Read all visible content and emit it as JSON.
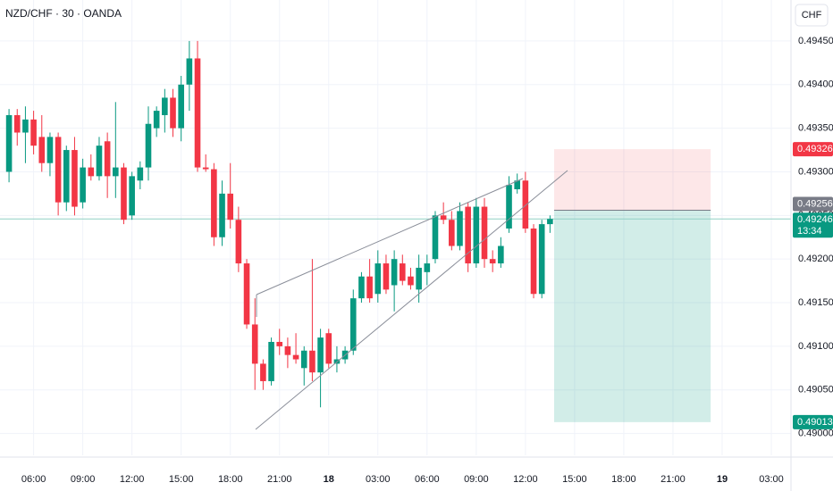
{
  "chart_data": {
    "type": "candlestick",
    "title": "NZD/CHF · 30 · OANDA",
    "currency": "CHF",
    "up_color": "#089981",
    "down_color": "#f23645",
    "grid": true,
    "open": [
      0.493,
      0.49365,
      0.49345,
      0.4936,
      0.4934,
      0.4931,
      0.4934,
      0.49265,
      0.49325,
      0.49265,
      0.49305,
      0.49295,
      0.49335,
      0.49295,
      0.49305,
      0.4925,
      0.4929,
      0.49305,
      0.4935,
      0.49365,
      0.49385,
      0.4935,
      0.494,
      0.4943,
      0.49305,
      0.49303,
      0.49225,
      0.49275,
      0.49245,
      0.49195,
      0.49125,
      0.4908,
      0.4906,
      0.49105,
      0.491,
      0.4909,
      0.49075,
      0.49095,
      0.4907,
      0.49115,
      0.4908,
      0.49085,
      0.49095,
      0.49155,
      0.4918,
      0.4916,
      0.49195,
      0.4917,
      0.49195,
      0.4918,
      0.49165,
      0.49185,
      0.492,
      0.4925,
      0.49245,
      0.49215,
      0.4926,
      0.49195,
      0.4926,
      0.492,
      0.49195,
      0.49235,
      0.4928,
      0.4929,
      0.49235,
      0.4916,
      0.4924
    ],
    "high": [
      0.49372,
      0.49372,
      0.49375,
      0.4937,
      0.49365,
      0.49345,
      0.49345,
      0.4933,
      0.4934,
      0.49315,
      0.4932,
      0.4934,
      0.49345,
      0.4938,
      0.4931,
      0.493,
      0.49312,
      0.49375,
      0.49375,
      0.49395,
      0.49395,
      0.4941,
      0.4945,
      0.4945,
      0.4932,
      0.4931,
      0.4929,
      0.4931,
      0.4926,
      0.492,
      0.49155,
      0.49085,
      0.4911,
      0.4912,
      0.4911,
      0.49115,
      0.491,
      0.492,
      0.4912,
      0.4912,
      0.491,
      0.491,
      0.49165,
      0.49185,
      0.492,
      0.4921,
      0.49205,
      0.4921,
      0.49205,
      0.4919,
      0.49205,
      0.49205,
      0.49255,
      0.49265,
      0.49255,
      0.49265,
      0.49265,
      0.4927,
      0.4927,
      0.4921,
      0.49225,
      0.49295,
      0.49298,
      0.493,
      0.4924,
      0.49245,
      0.4925
    ],
    "low": [
      0.49288,
      0.4933,
      0.4931,
      0.4932,
      0.493,
      0.49295,
      0.4925,
      0.49255,
      0.4925,
      0.49258,
      0.4929,
      0.4929,
      0.4927,
      0.4927,
      0.4924,
      0.49245,
      0.4928,
      0.4929,
      0.4934,
      0.49345,
      0.4934,
      0.49335,
      0.4937,
      0.493,
      0.493,
      0.49215,
      0.49215,
      0.49235,
      0.49185,
      0.4912,
      0.4905,
      0.4905,
      0.49055,
      0.4909,
      0.49075,
      0.4908,
      0.49055,
      0.4906,
      0.4903,
      0.49075,
      0.4907,
      0.4908,
      0.4909,
      0.4915,
      0.4915,
      0.4915,
      0.4916,
      0.4914,
      0.4917,
      0.49165,
      0.4915,
      0.4917,
      0.49195,
      0.4924,
      0.4921,
      0.4921,
      0.49185,
      0.4919,
      0.4919,
      0.49185,
      0.4919,
      0.4923,
      0.49275,
      0.4923,
      0.49155,
      0.49155,
      0.4923
    ],
    "close": [
      0.49365,
      0.49345,
      0.4936,
      0.4933,
      0.4931,
      0.4934,
      0.49265,
      0.49325,
      0.4926,
      0.49305,
      0.49295,
      0.4933,
      0.49295,
      0.49305,
      0.49245,
      0.49295,
      0.49305,
      0.49355,
      0.4937,
      0.49385,
      0.4935,
      0.494,
      0.4943,
      0.49305,
      0.49303,
      0.49225,
      0.49275,
      0.49245,
      0.49195,
      0.49125,
      0.4908,
      0.4906,
      0.49105,
      0.491,
      0.4909,
      0.49085,
      0.49095,
      0.4907,
      0.4911,
      0.4908,
      0.49085,
      0.49095,
      0.49155,
      0.4918,
      0.49155,
      0.49195,
      0.49165,
      0.492,
      0.49175,
      0.4917,
      0.4919,
      0.49195,
      0.4925,
      0.49245,
      0.49215,
      0.49255,
      0.49195,
      0.4926,
      0.492,
      0.49195,
      0.49215,
      0.49285,
      0.4929,
      0.49235,
      0.4916,
      0.4924,
      0.49246
    ],
    "xlim": [
      -1.1,
      95.4
    ],
    "xticks": [
      {
        "value": 3,
        "label": "06:00"
      },
      {
        "value": 9,
        "label": "09:00"
      },
      {
        "value": 15,
        "label": "12:00"
      },
      {
        "value": 21,
        "label": "15:00"
      },
      {
        "value": 27,
        "label": "18:00"
      },
      {
        "value": 33,
        "label": "21:00"
      },
      {
        "value": 39,
        "label": "18"
      },
      {
        "value": 45,
        "label": "03:00"
      },
      {
        "value": 51,
        "label": "06:00"
      },
      {
        "value": 57,
        "label": "09:00"
      },
      {
        "value": 63,
        "label": "12:00"
      },
      {
        "value": 69,
        "label": "15:00"
      },
      {
        "value": 75,
        "label": "18:00"
      },
      {
        "value": 81,
        "label": "21:00"
      },
      {
        "value": 87,
        "label": "19"
      },
      {
        "value": 93,
        "label": "03:00"
      }
    ],
    "ylim": [
      0.48975,
      0.49497
    ],
    "yticks": [
      {
        "value": 0.49,
        "label": "0.49000"
      },
      {
        "value": 0.4905,
        "label": "0.49050"
      },
      {
        "value": 0.491,
        "label": "0.49100"
      },
      {
        "value": 0.4915,
        "label": "0.49150"
      },
      {
        "value": 0.492,
        "label": "0.49200"
      },
      {
        "value": 0.4925,
        "label": "0.49250"
      },
      {
        "value": 0.493,
        "label": "0.49300"
      },
      {
        "value": 0.4935,
        "label": "0.49350"
      },
      {
        "value": 0.494,
        "label": "0.49400"
      },
      {
        "value": 0.4945,
        "label": "0.49450"
      }
    ],
    "position": {
      "stop": 0.49326,
      "entry": 0.49256,
      "target": 0.49013
    },
    "last_price": 0.49246,
    "countdown": "13:34"
  }
}
